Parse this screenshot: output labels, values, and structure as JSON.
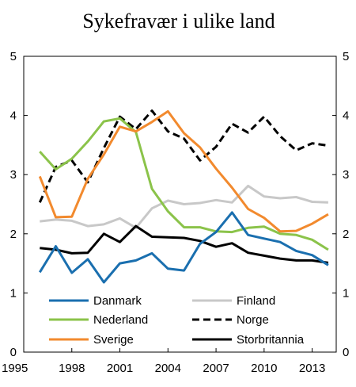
{
  "chart_data": {
    "type": "line",
    "title": "Sykefravær i ulike land",
    "xlabel": "",
    "ylabel": "",
    "xlim": [
      1995,
      2014.5
    ],
    "ylim": [
      0,
      5
    ],
    "x_ticks": [
      "1995",
      "1998",
      "2001",
      "2004",
      "2007",
      "2010",
      "2013"
    ],
    "y_ticks_left": [
      "0",
      "1",
      "2",
      "3",
      "4",
      "5"
    ],
    "y_ticks_right": [
      "0",
      "1",
      "2",
      "3",
      "4",
      "5"
    ],
    "grid": false,
    "legend_position": "bottom-inside",
    "x": [
      1996,
      1997,
      1998,
      1999,
      2000,
      2001,
      2002,
      2003,
      2004,
      2005,
      2006,
      2007,
      2008,
      2009,
      2010,
      2011,
      2012,
      2013,
      2014
    ],
    "series": [
      {
        "name": "Danmark",
        "color": "#1a6faf",
        "dash": "solid",
        "values": [
          1.35,
          1.79,
          1.34,
          1.57,
          1.18,
          1.5,
          1.55,
          1.67,
          1.41,
          1.38,
          1.83,
          2.03,
          2.36,
          1.98,
          1.92,
          1.86,
          1.71,
          1.64,
          1.47
        ]
      },
      {
        "name": "Finland",
        "color": "#c8c8c8",
        "dash": "solid",
        "values": [
          2.21,
          2.24,
          2.22,
          2.13,
          2.16,
          2.26,
          2.1,
          2.43,
          2.56,
          2.5,
          2.52,
          2.57,
          2.53,
          2.81,
          2.63,
          2.6,
          2.62,
          2.54,
          2.53
        ]
      },
      {
        "name": "Nederland",
        "color": "#8bc34a",
        "dash": "solid",
        "values": [
          3.39,
          3.09,
          3.27,
          3.56,
          3.9,
          3.95,
          3.72,
          2.76,
          2.38,
          2.11,
          2.11,
          2.04,
          2.03,
          2.1,
          2.12,
          2.0,
          1.98,
          1.9,
          1.73
        ]
      },
      {
        "name": "Norge",
        "color": "#000000",
        "dash": "dashed",
        "values": [
          2.53,
          3.13,
          3.24,
          2.87,
          3.45,
          3.98,
          3.77,
          4.08,
          3.73,
          3.61,
          3.24,
          3.47,
          3.86,
          3.71,
          3.98,
          3.65,
          3.41,
          3.53,
          3.49
        ]
      },
      {
        "name": "Sverige",
        "color": "#f28a2e",
        "dash": "solid",
        "values": [
          2.97,
          2.28,
          2.29,
          2.93,
          3.34,
          3.81,
          3.73,
          3.89,
          4.07,
          3.7,
          3.46,
          3.1,
          2.78,
          2.42,
          2.27,
          2.04,
          2.05,
          2.17,
          2.33
        ]
      },
      {
        "name": "Storbritannia",
        "color": "#000000",
        "dash": "solid",
        "values": [
          1.76,
          1.73,
          1.67,
          1.68,
          2.0,
          1.86,
          2.13,
          1.95,
          1.94,
          1.93,
          1.88,
          1.78,
          1.84,
          1.68,
          1.63,
          1.58,
          1.55,
          1.55,
          1.51
        ]
      }
    ]
  }
}
